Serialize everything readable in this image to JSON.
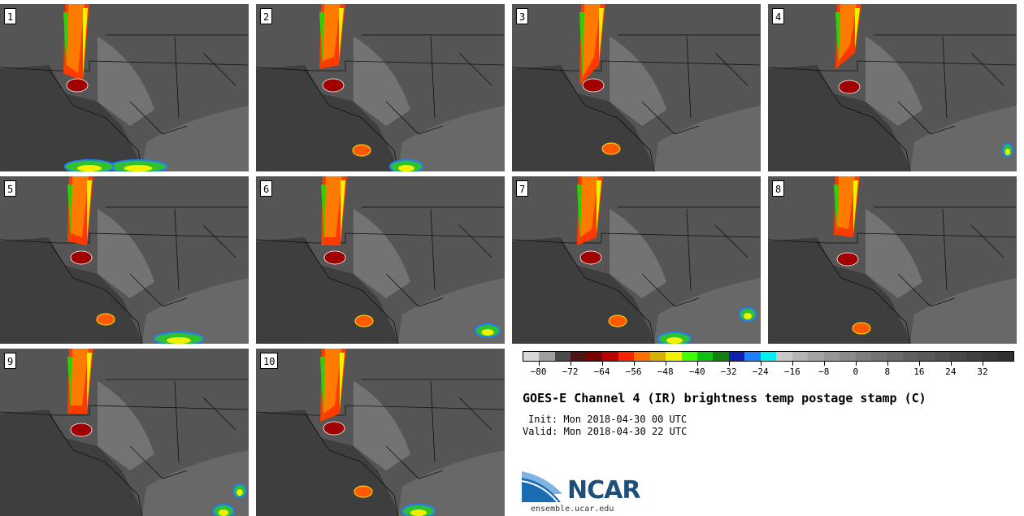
{
  "panels": [
    {
      "number": "1"
    },
    {
      "number": "2"
    },
    {
      "number": "3"
    },
    {
      "number": "4"
    },
    {
      "number": "5"
    },
    {
      "number": "6"
    },
    {
      "number": "7"
    },
    {
      "number": "8"
    },
    {
      "number": "9"
    },
    {
      "number": "10"
    }
  ],
  "colorbar": {
    "colors": [
      "#d8d8d8",
      "#a0a0a0",
      "#4a4a4a",
      "#4e1414",
      "#7a0000",
      "#b80000",
      "#ff2200",
      "#ff7000",
      "#d8b000",
      "#f0f000",
      "#40ff00",
      "#10c010",
      "#108010",
      "#1020b0",
      "#1e80ff",
      "#00f0f0",
      "#c8c8c8",
      "#b4b4b4",
      "#a4a4a4",
      "#969696",
      "#8a8a8a",
      "#7e7e7e",
      "#747474",
      "#6a6a6a",
      "#606060",
      "#585858",
      "#505050",
      "#484848",
      "#404040",
      "#383838",
      "#303030"
    ],
    "ticks": [
      "−80",
      "−72",
      "−64",
      "−56",
      "−48",
      "−40",
      "−32",
      "−24",
      "−16",
      "−8",
      "0",
      "8",
      "16",
      "24",
      "32"
    ]
  },
  "title": "GOES-E Channel 4 (IR) brightness temp postage stamp (C)",
  "init_line": "Init: Mon 2018-04-30 00 UTC",
  "valid_line": "Valid: Mon 2018-04-30 22 UTC",
  "logo": {
    "text": "NCAR"
  },
  "site": "ensemble.ucar.edu"
}
